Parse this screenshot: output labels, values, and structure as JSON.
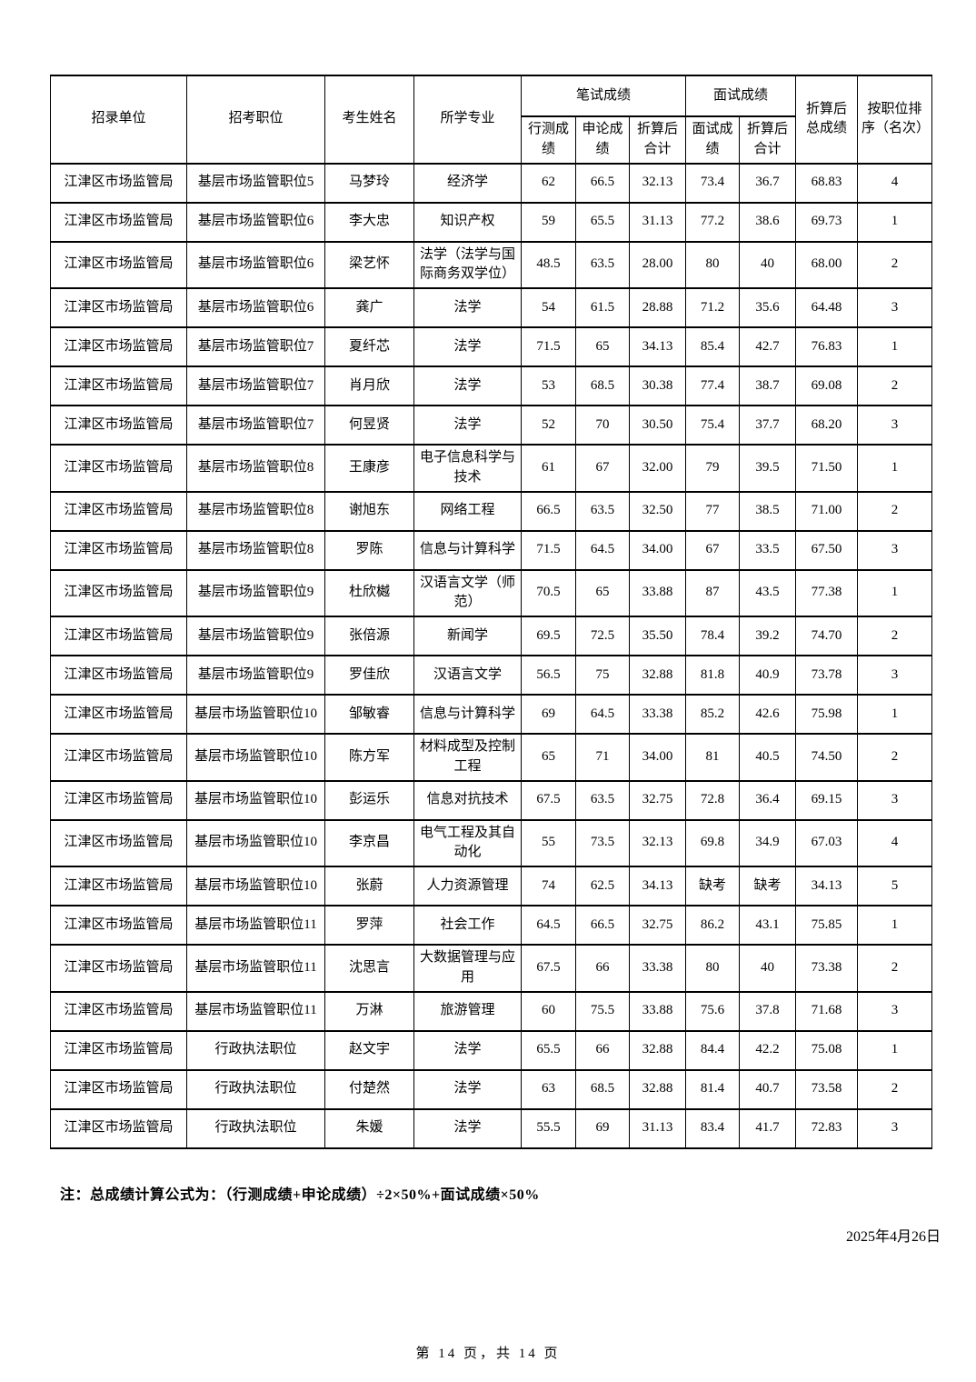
{
  "table": {
    "headers": {
      "unit": "招录单位",
      "position": "招考职位",
      "name": "考生姓名",
      "major": "所学专业",
      "written_group": "笔试成绩",
      "interview_group": "面试成绩",
      "xingce": "行测成绩",
      "shenlun": "申论成绩",
      "written_converted": "折算后合计",
      "interview_score": "面试成绩",
      "interview_converted": "折算后合计",
      "total": "折算后总成绩",
      "rank": "按职位排序（名次）"
    },
    "column_keys": [
      "unit",
      "position",
      "name",
      "major",
      "xingce",
      "shenlun",
      "written-converted",
      "interview-score",
      "interview-converted",
      "total",
      "rank"
    ],
    "rows": [
      [
        "江津区市场监管局",
        "基层市场监管职位5",
        "马梦玲",
        "经济学",
        "62",
        "66.5",
        "32.13",
        "73.4",
        "36.7",
        "68.83",
        "4"
      ],
      [
        "江津区市场监管局",
        "基层市场监管职位6",
        "李大忠",
        "知识产权",
        "59",
        "65.5",
        "31.13",
        "77.2",
        "38.6",
        "69.73",
        "1"
      ],
      [
        "江津区市场监管局",
        "基层市场监管职位6",
        "梁艺怀",
        "法学（法学与国际商务双学位）",
        "48.5",
        "63.5",
        "28.00",
        "80",
        "40",
        "68.00",
        "2"
      ],
      [
        "江津区市场监管局",
        "基层市场监管职位6",
        "龚广",
        "法学",
        "54",
        "61.5",
        "28.88",
        "71.2",
        "35.6",
        "64.48",
        "3"
      ],
      [
        "江津区市场监管局",
        "基层市场监管职位7",
        "夏纤芯",
        "法学",
        "71.5",
        "65",
        "34.13",
        "85.4",
        "42.7",
        "76.83",
        "1"
      ],
      [
        "江津区市场监管局",
        "基层市场监管职位7",
        "肖月欣",
        "法学",
        "53",
        "68.5",
        "30.38",
        "77.4",
        "38.7",
        "69.08",
        "2"
      ],
      [
        "江津区市场监管局",
        "基层市场监管职位7",
        "何昱贤",
        "法学",
        "52",
        "70",
        "30.50",
        "75.4",
        "37.7",
        "68.20",
        "3"
      ],
      [
        "江津区市场监管局",
        "基层市场监管职位8",
        "王康彦",
        "电子信息科学与技术",
        "61",
        "67",
        "32.00",
        "79",
        "39.5",
        "71.50",
        "1"
      ],
      [
        "江津区市场监管局",
        "基层市场监管职位8",
        "谢旭东",
        "网络工程",
        "66.5",
        "63.5",
        "32.50",
        "77",
        "38.5",
        "71.00",
        "2"
      ],
      [
        "江津区市场监管局",
        "基层市场监管职位8",
        "罗陈",
        "信息与计算科学",
        "71.5",
        "64.5",
        "34.00",
        "67",
        "33.5",
        "67.50",
        "3"
      ],
      [
        "江津区市场监管局",
        "基层市场监管职位9",
        "杜欣樾",
        "汉语言文学（师范）",
        "70.5",
        "65",
        "33.88",
        "87",
        "43.5",
        "77.38",
        "1"
      ],
      [
        "江津区市场监管局",
        "基层市场监管职位9",
        "张倍源",
        "新闻学",
        "69.5",
        "72.5",
        "35.50",
        "78.4",
        "39.2",
        "74.70",
        "2"
      ],
      [
        "江津区市场监管局",
        "基层市场监管职位9",
        "罗佳欣",
        "汉语言文学",
        "56.5",
        "75",
        "32.88",
        "81.8",
        "40.9",
        "73.78",
        "3"
      ],
      [
        "江津区市场监管局",
        "基层市场监管职位10",
        "邹敏睿",
        "信息与计算科学",
        "69",
        "64.5",
        "33.38",
        "85.2",
        "42.6",
        "75.98",
        "1"
      ],
      [
        "江津区市场监管局",
        "基层市场监管职位10",
        "陈方军",
        "材料成型及控制工程",
        "65",
        "71",
        "34.00",
        "81",
        "40.5",
        "74.50",
        "2"
      ],
      [
        "江津区市场监管局",
        "基层市场监管职位10",
        "彭运乐",
        "信息对抗技术",
        "67.5",
        "63.5",
        "32.75",
        "72.8",
        "36.4",
        "69.15",
        "3"
      ],
      [
        "江津区市场监管局",
        "基层市场监管职位10",
        "李京昌",
        "电气工程及其自动化",
        "55",
        "73.5",
        "32.13",
        "69.8",
        "34.9",
        "67.03",
        "4"
      ],
      [
        "江津区市场监管局",
        "基层市场监管职位10",
        "张蔚",
        "人力资源管理",
        "74",
        "62.5",
        "34.13",
        "缺考",
        "缺考",
        "34.13",
        "5"
      ],
      [
        "江津区市场监管局",
        "基层市场监管职位11",
        "罗萍",
        "社会工作",
        "64.5",
        "66.5",
        "32.75",
        "86.2",
        "43.1",
        "75.85",
        "1"
      ],
      [
        "江津区市场监管局",
        "基层市场监管职位11",
        "沈思言",
        "大数据管理与应用",
        "67.5",
        "66",
        "33.38",
        "80",
        "40",
        "73.38",
        "2"
      ],
      [
        "江津区市场监管局",
        "基层市场监管职位11",
        "万淋",
        "旅游管理",
        "60",
        "75.5",
        "33.88",
        "75.6",
        "37.8",
        "71.68",
        "3"
      ],
      [
        "江津区市场监管局",
        "行政执法职位",
        "赵文宇",
        "法学",
        "65.5",
        "66",
        "32.88",
        "84.4",
        "42.2",
        "75.08",
        "1"
      ],
      [
        "江津区市场监管局",
        "行政执法职位",
        "付楚然",
        "法学",
        "63",
        "68.5",
        "32.88",
        "81.4",
        "40.7",
        "73.58",
        "2"
      ],
      [
        "江津区市场监管局",
        "行政执法职位",
        "朱媛",
        "法学",
        "55.5",
        "69",
        "31.13",
        "83.4",
        "41.7",
        "72.83",
        "3"
      ]
    ]
  },
  "note": "注：总成绩计算公式为：（行测成绩+申论成绩）÷2×50%+面试成绩×50%",
  "date": "2025年4月26日",
  "page_footer": "第 14 页，共 14 页"
}
